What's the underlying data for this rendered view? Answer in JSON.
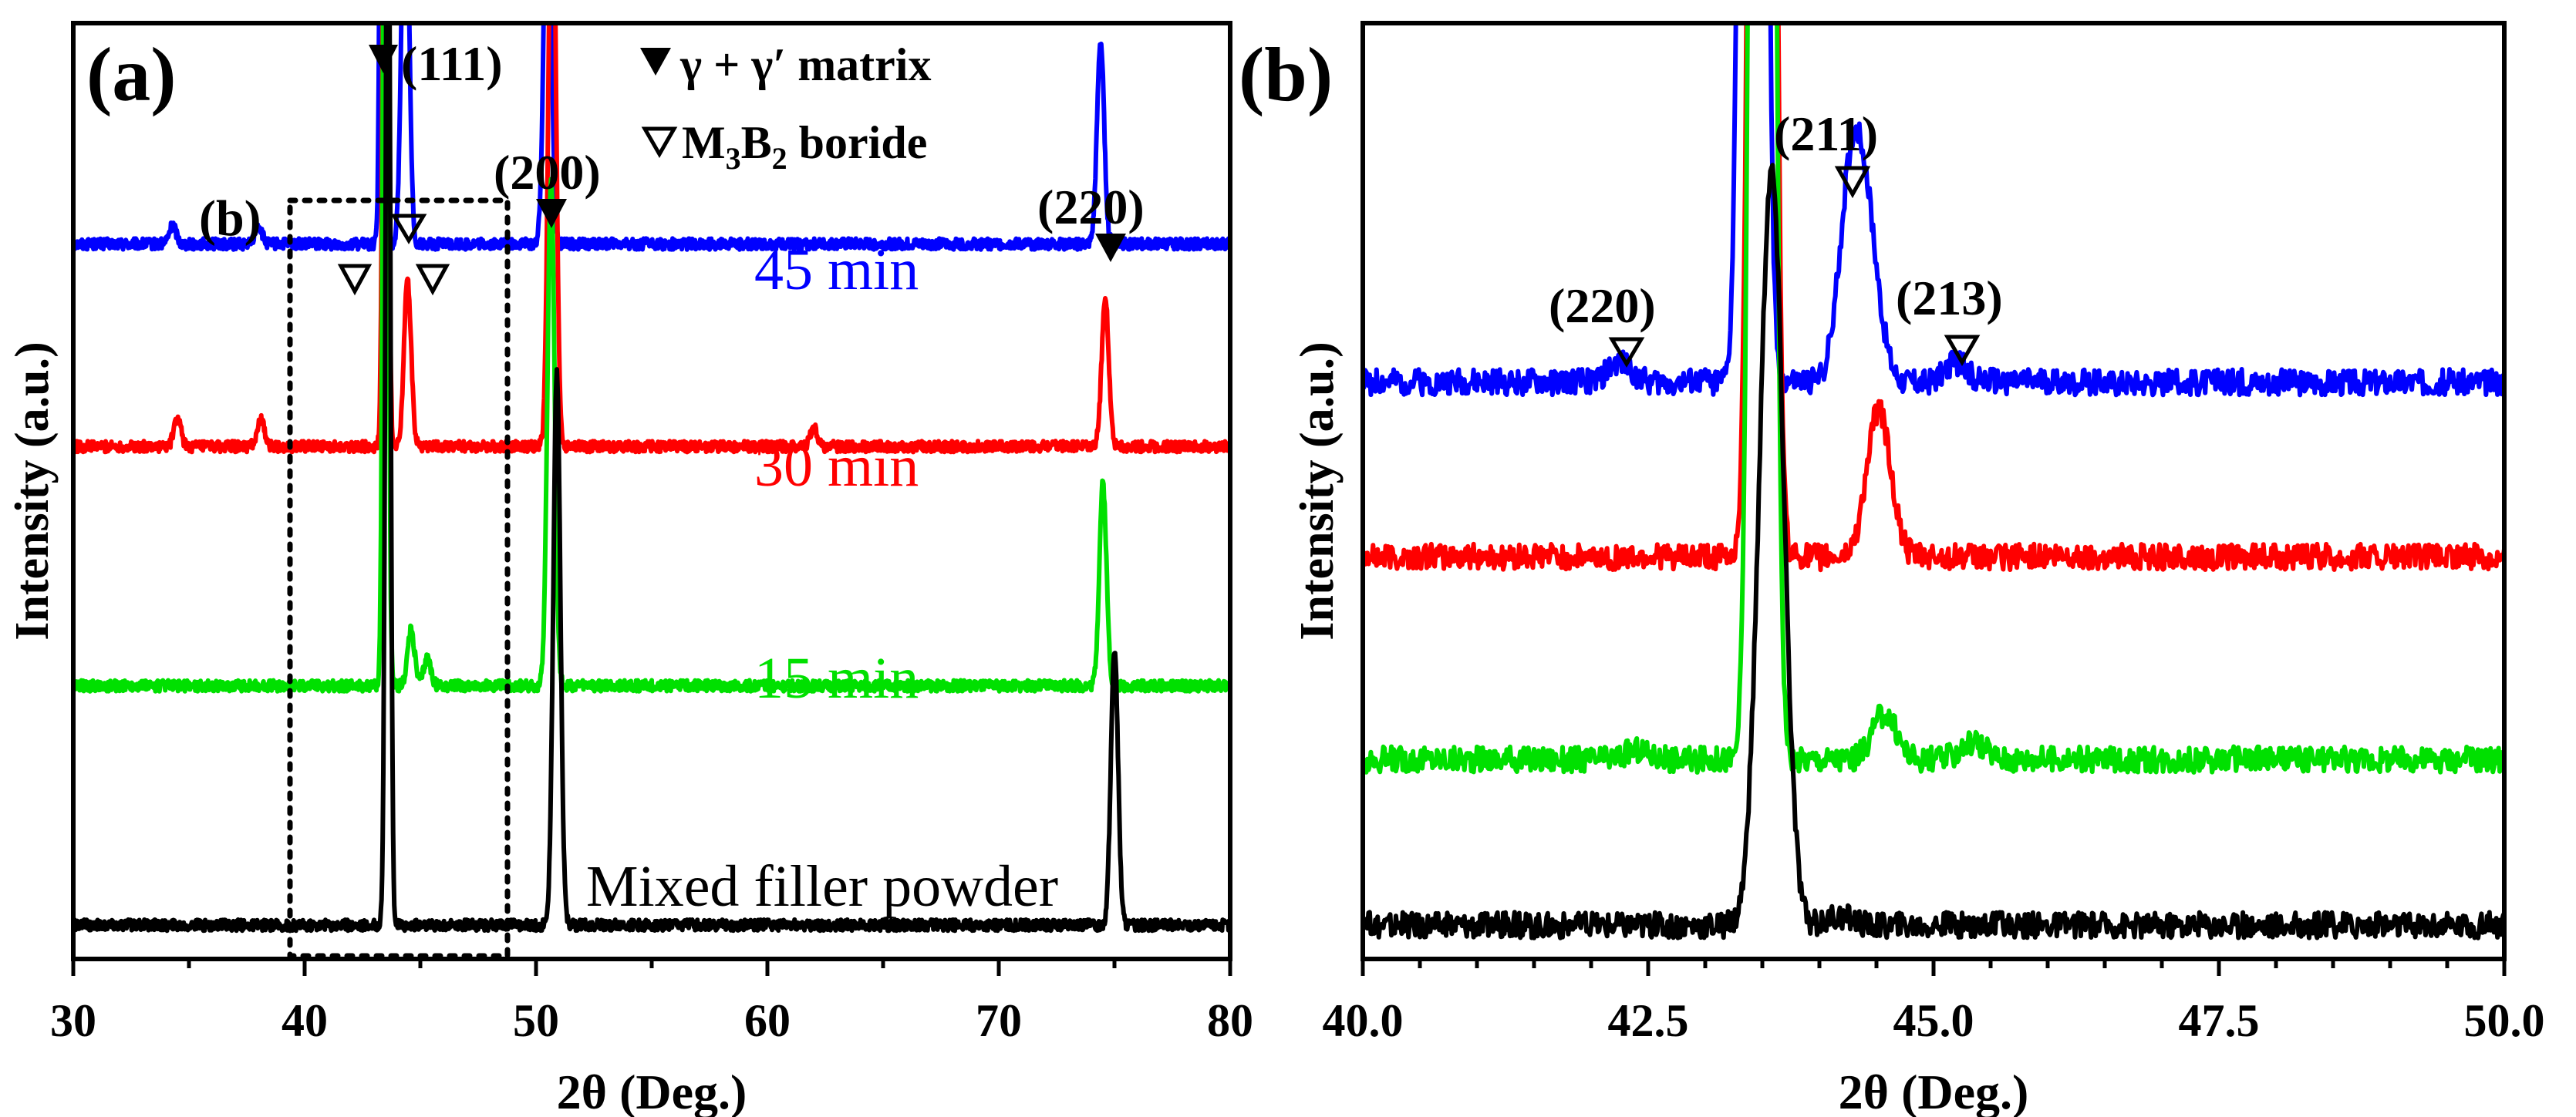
{
  "chart_data": [
    {
      "panel": "a",
      "type": "line",
      "panel_label": "(a)",
      "inset_label": "(b)",
      "xlabel": "2θ (Deg.)",
      "ylabel": "Intensity (a.u.)",
      "xlim": [
        30,
        80
      ],
      "x_ticks": [
        "30",
        "40",
        "50",
        "60",
        "70",
        "80"
      ],
      "legend": {
        "filled_label": "γ + γ′ matrix",
        "open_label_main": "M",
        "open_label_sub1": "3",
        "open_label_mid": "B",
        "open_label_sub2": "2",
        "open_label_tail": " boride"
      },
      "peak_labels": {
        "p111": "(111)",
        "p200": "(200)",
        "p220": "(220)"
      },
      "inset_box_x": [
        39.5,
        48.7
      ],
      "series": [
        {
          "name": "45 min",
          "color": "#0000ff",
          "baseline": 0.76,
          "peaks": [
            [
              43.4,
              1.32
            ],
            [
              44.35,
              0.46
            ],
            [
              50.5,
              0.45
            ],
            [
              74.4,
              0.22
            ],
            [
              38.0,
              0.02
            ],
            [
              34.3,
              0.02
            ]
          ]
        },
        {
          "name": "30 min",
          "color": "#ff0000",
          "baseline": 0.54,
          "peaks": [
            [
              43.5,
              1.16
            ],
            [
              44.45,
              0.18
            ],
            [
              50.7,
              0.7
            ],
            [
              74.6,
              0.16
            ],
            [
              34.5,
              0.03
            ],
            [
              38.1,
              0.03
            ],
            [
              62.0,
              0.02
            ]
          ]
        },
        {
          "name": "15 min",
          "color": "#00e000",
          "baseline": 0.28,
          "peaks": [
            [
              43.5,
              1.35
            ],
            [
              44.6,
              0.06
            ],
            [
              50.65,
              0.55
            ],
            [
              74.5,
              0.22
            ],
            [
              45.3,
              0.03
            ]
          ]
        },
        {
          "name": "Mixed filler powder",
          "color": "#000000",
          "baseline": 0.02,
          "peaks": [
            [
              43.6,
              1.3
            ],
            [
              50.9,
              0.6
            ],
            [
              75.0,
              0.3
            ]
          ]
        }
      ]
    },
    {
      "panel": "b",
      "type": "line",
      "panel_label": "(b)",
      "xlabel": "2θ (Deg.)",
      "ylabel": "Intensity (a.u.)",
      "xlim": [
        40.0,
        50.0
      ],
      "x_ticks": [
        "40.0",
        "42.5",
        "45.0",
        "47.5",
        "50.0"
      ],
      "peak_labels": {
        "p220": "(220)",
        "p211": "(211)",
        "p213": "(213)"
      },
      "series": [
        {
          "name": "45 min",
          "color": "#0000ff",
          "baseline": 0.61,
          "peaks": [
            [
              43.42,
              5.0
            ],
            [
              44.28,
              0.215
            ],
            [
              44.43,
              0.13
            ],
            [
              42.25,
              0.02
            ],
            [
              45.2,
              0.02
            ]
          ]
        },
        {
          "name": "30 min",
          "color": "#ff0000",
          "baseline": 0.42,
          "peaks": [
            [
              43.5,
              5.0
            ],
            [
              44.52,
              0.16
            ]
          ]
        },
        {
          "name": "15 min",
          "color": "#00e000",
          "baseline": 0.2,
          "peaks": [
            [
              43.5,
              5.0
            ],
            [
              44.57,
              0.05
            ],
            [
              45.35,
              0.02
            ],
            [
              42.4,
              0.01
            ]
          ]
        },
        {
          "name": "Mixed filler powder",
          "color": "#000000",
          "baseline": 0.02,
          "peaks": [
            [
              43.58,
              0.82
            ],
            [
              44.2,
              0.01
            ]
          ]
        }
      ]
    }
  ]
}
